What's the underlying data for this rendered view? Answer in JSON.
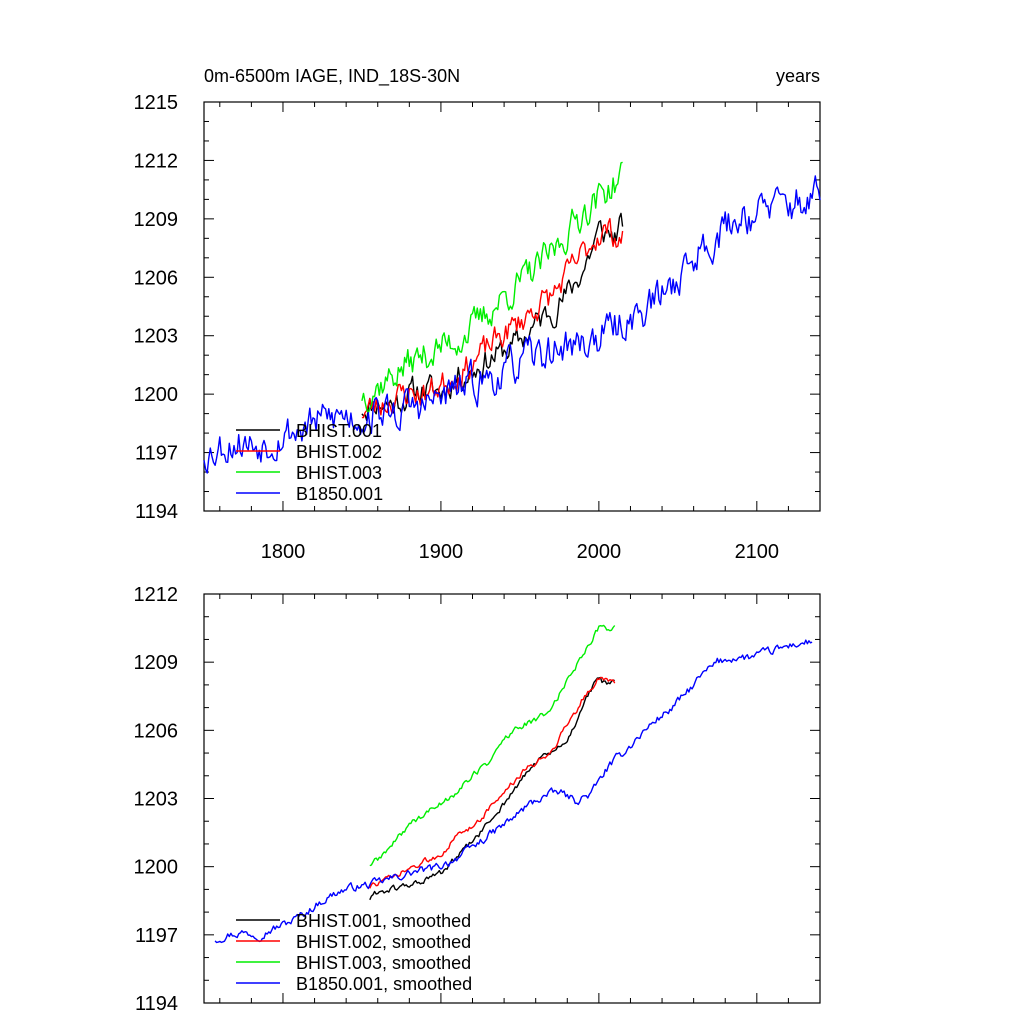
{
  "figure": {
    "title_left": "0m-6500m IAGE, IND_18S-30N",
    "title_right": "years"
  },
  "chart_data": [
    {
      "type": "line",
      "title": "0m-6500m IAGE, IND_18S-30N",
      "units_label": "years",
      "xlim": [
        1750,
        2140
      ],
      "ylim": [
        1194,
        1215
      ],
      "xticks": [
        1800,
        1900,
        2000,
        2100
      ],
      "yticks": [
        1194,
        1197,
        1200,
        1203,
        1206,
        1209,
        1212,
        1215
      ],
      "x_tick_labels": [
        "1800",
        "1900",
        "2000",
        "2100"
      ],
      "y_tick_labels": [
        "1194",
        "1197",
        "1200",
        "1203",
        "1206",
        "1209",
        "1212",
        "1215"
      ],
      "legend": [
        "BHIST.001",
        "BHIST.002",
        "BHIST.003",
        "B1850.001"
      ],
      "series": [
        {
          "name": "BHIST.001",
          "color": "#000000",
          "x": [
            1850,
            1860,
            1870,
            1880,
            1890,
            1900,
            1910,
            1920,
            1930,
            1940,
            1950,
            1960,
            1970,
            1980,
            1990,
            2000,
            2005,
            2010,
            2015
          ],
          "y": [
            1199.3,
            1199.6,
            1199.5,
            1200.0,
            1200.3,
            1200.1,
            1200.9,
            1201.2,
            1201.8,
            1202.2,
            1202.7,
            1203.6,
            1204.3,
            1205.1,
            1206.4,
            1208.3,
            1208.3,
            1208.1,
            1208.7
          ],
          "noise": 0.6,
          "seed": 11
        },
        {
          "name": "BHIST.002",
          "color": "#ff0000",
          "x": [
            1850,
            1860,
            1870,
            1880,
            1890,
            1900,
            1910,
            1920,
            1930,
            1940,
            1950,
            1960,
            1970,
            1980,
            1990,
            2000,
            2005,
            2010,
            2015
          ],
          "y": [
            1199.1,
            1199.4,
            1199.8,
            1200.1,
            1200.0,
            1200.5,
            1201.0,
            1201.6,
            1202.4,
            1203.1,
            1203.7,
            1204.5,
            1205.0,
            1206.1,
            1207.2,
            1208.3,
            1208.4,
            1208.2,
            1207.9
          ],
          "noise": 0.6,
          "seed": 23
        },
        {
          "name": "BHIST.003",
          "color": "#00ee00",
          "x": [
            1850,
            1860,
            1870,
            1880,
            1890,
            1900,
            1910,
            1920,
            1930,
            1940,
            1950,
            1960,
            1970,
            1980,
            1990,
            2000,
            2005,
            2010,
            2015
          ],
          "y": [
            1200.0,
            1200.4,
            1201.0,
            1201.6,
            1202.0,
            1202.4,
            1202.8,
            1203.4,
            1204.2,
            1205.0,
            1205.7,
            1206.4,
            1207.2,
            1208.3,
            1209.4,
            1210.1,
            1210.5,
            1210.8,
            1211.2
          ],
          "noise": 0.7,
          "seed": 37
        },
        {
          "name": "B1850.001",
          "color": "#0000ff",
          "x": [
            1750,
            1760,
            1770,
            1780,
            1790,
            1800,
            1810,
            1820,
            1830,
            1840,
            1850,
            1860,
            1870,
            1880,
            1890,
            1900,
            1910,
            1920,
            1930,
            1940,
            1950,
            1960,
            1970,
            1980,
            1990,
            2000,
            2010,
            2020,
            2030,
            2040,
            2050,
            2060,
            2070,
            2080,
            2090,
            2100,
            2110,
            2120,
            2130,
            2140
          ],
          "y": [
            1197.0,
            1197.3,
            1197.6,
            1197.4,
            1197.6,
            1198.0,
            1198.2,
            1198.5,
            1198.8,
            1198.9,
            1198.8,
            1199.1,
            1199.0,
            1199.3,
            1199.4,
            1199.8,
            1200.2,
            1200.5,
            1200.8,
            1201.1,
            1201.6,
            1201.9,
            1202.2,
            1202.5,
            1202.6,
            1202.9,
            1203.4,
            1203.9,
            1204.4,
            1205.1,
            1206.0,
            1207.0,
            1207.9,
            1208.5,
            1209.2,
            1209.3,
            1209.6,
            1209.7,
            1209.9,
            1210.2
          ],
          "noise": 0.8,
          "seed": 53
        }
      ]
    },
    {
      "type": "line",
      "title": "",
      "xlim": [
        1750,
        2140
      ],
      "ylim": [
        1194,
        1212
      ],
      "xticks": [
        1800,
        1900,
        2000,
        2100
      ],
      "yticks": [
        1194,
        1197,
        1200,
        1203,
        1206,
        1209,
        1212
      ],
      "y_tick_labels": [
        "1194",
        "1197",
        "1200",
        "1203",
        "1206",
        "1209",
        "1212"
      ],
      "legend": [
        "BHIST.001, smoothed",
        "BHIST.002, smoothed",
        "BHIST.003, smoothed",
        "B1850.001, smoothed"
      ],
      "series": [
        {
          "name": "BHIST.001, smoothed",
          "color": "#000000",
          "x": [
            1855,
            1860,
            1870,
            1880,
            1890,
            1900,
            1910,
            1920,
            1930,
            1940,
            1950,
            1960,
            1970,
            1980,
            1985,
            1990,
            2000,
            2005,
            2010
          ],
          "y": [
            1198.6,
            1198.9,
            1199.0,
            1199.2,
            1199.4,
            1199.7,
            1200.4,
            1201.1,
            1201.9,
            1202.8,
            1203.7,
            1204.6,
            1205.0,
            1205.5,
            1206.3,
            1207.2,
            1208.3,
            1208.0,
            1208.1
          ],
          "noise": 0.12,
          "seed": 61
        },
        {
          "name": "BHIST.002, smoothed",
          "color": "#ff0000",
          "x": [
            1855,
            1860,
            1870,
            1880,
            1890,
            1900,
            1910,
            1920,
            1930,
            1940,
            1950,
            1960,
            1970,
            1980,
            1985,
            1990,
            2000,
            2005,
            2010
          ],
          "y": [
            1199.1,
            1199.3,
            1199.5,
            1199.9,
            1200.2,
            1200.6,
            1201.3,
            1201.8,
            1202.5,
            1203.3,
            1204.0,
            1204.6,
            1205.1,
            1206.3,
            1206.8,
            1207.4,
            1208.3,
            1208.2,
            1208.1
          ],
          "noise": 0.12,
          "seed": 73
        },
        {
          "name": "BHIST.003, smoothed",
          "color": "#00ee00",
          "x": [
            1855,
            1860,
            1870,
            1880,
            1890,
            1900,
            1910,
            1920,
            1930,
            1940,
            1950,
            1960,
            1970,
            1980,
            1990,
            2000,
            2005,
            2010
          ],
          "y": [
            1200.1,
            1200.3,
            1201.0,
            1201.9,
            1202.3,
            1202.8,
            1203.3,
            1204.0,
            1204.6,
            1205.6,
            1206.2,
            1206.4,
            1207.0,
            1208.2,
            1209.4,
            1210.5,
            1210.5,
            1210.6
          ],
          "noise": 0.12,
          "seed": 89
        },
        {
          "name": "B1850.001, smoothed",
          "color": "#0000ff",
          "x": [
            1757,
            1765,
            1775,
            1785,
            1795,
            1805,
            1815,
            1825,
            1835,
            1845,
            1855,
            1865,
            1875,
            1885,
            1895,
            1905,
            1915,
            1925,
            1935,
            1945,
            1955,
            1965,
            1975,
            1985,
            1995,
            2005,
            2015,
            2025,
            2035,
            2045,
            2055,
            2065,
            2075,
            2085,
            2095,
            2105,
            2115,
            2125,
            2135
          ],
          "y": [
            1196.8,
            1197.0,
            1197.1,
            1197.0,
            1197.3,
            1197.6,
            1198.0,
            1198.5,
            1198.9,
            1199.1,
            1199.2,
            1199.4,
            1199.6,
            1199.8,
            1199.9,
            1200.2,
            1200.6,
            1201.1,
            1201.6,
            1202.1,
            1202.7,
            1203.1,
            1203.3,
            1202.9,
            1203.2,
            1204.3,
            1205.0,
            1205.7,
            1206.4,
            1206.9,
            1207.6,
            1208.4,
            1209.0,
            1209.2,
            1209.2,
            1209.4,
            1209.6,
            1209.8,
            1209.9
          ],
          "noise": 0.15,
          "seed": 97
        }
      ]
    }
  ]
}
